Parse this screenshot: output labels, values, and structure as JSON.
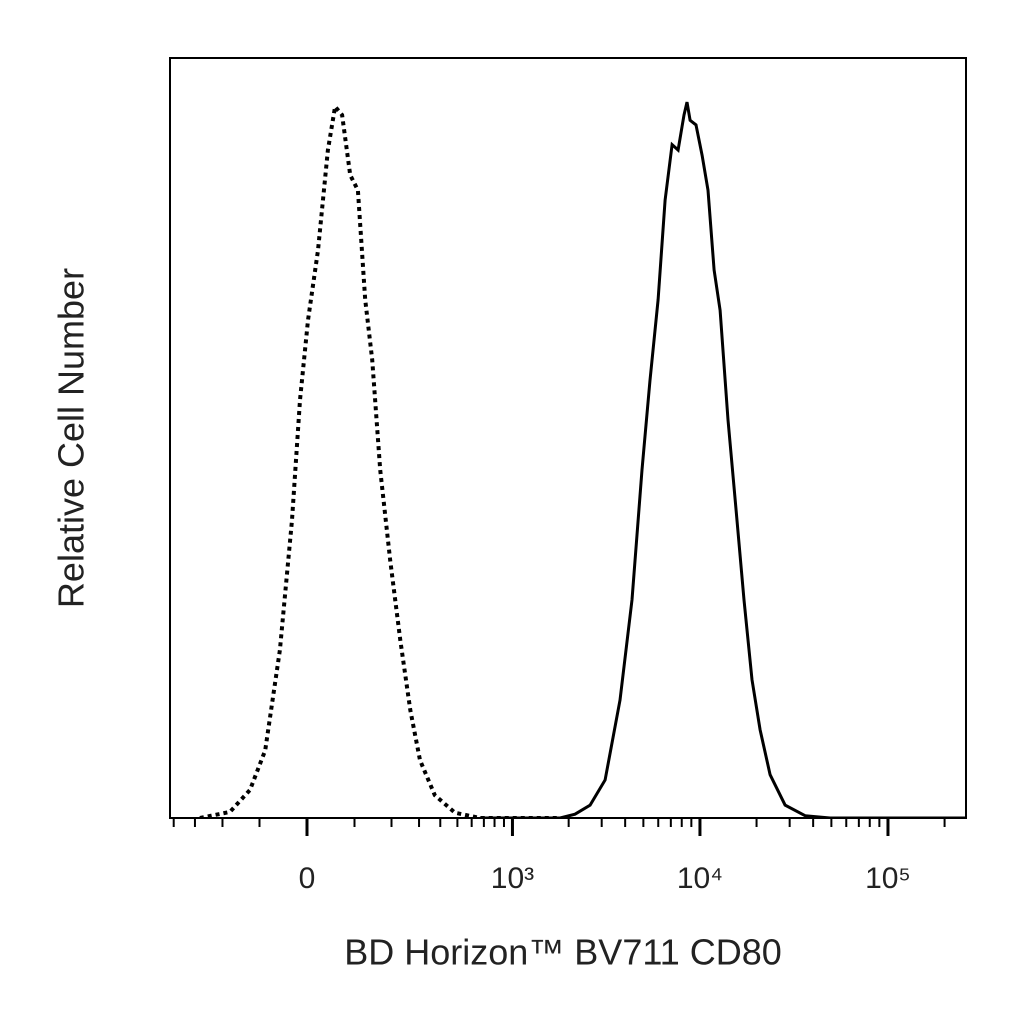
{
  "chart_data": {
    "type": "histogram-overlay",
    "xlabel": "BD Horizon™ BV711 CD80",
    "ylabel": "Relative Cell Number",
    "xscale": "biexponential",
    "xlim": [
      -420,
      260000
    ],
    "ylim": [
      0,
      100
    ],
    "xticks": [
      0,
      {
        "value": 1000,
        "label": "10³"
      },
      {
        "value": 10000,
        "label": "10⁴"
      },
      {
        "value": 100000,
        "label": "10⁵"
      }
    ],
    "xminorticks": [
      -400,
      -300,
      -200,
      -100,
      100,
      200,
      300,
      400,
      500,
      600,
      700,
      800,
      900,
      2000,
      3000,
      4000,
      5000,
      6000,
      7000,
      8000,
      9000,
      20000,
      30000,
      40000,
      50000,
      60000,
      70000,
      80000,
      90000,
      200000
    ],
    "series": [
      {
        "color": "#000000",
        "dash": "dotted",
        "x": [
          -280,
          -177,
          -123,
          -87,
          -55,
          -30,
          -14,
          2,
          22,
          42,
          57,
          72,
          90,
          108,
          126,
          144,
          166,
          196,
          229,
          265,
          304,
          372,
          484,
          666,
          1800
        ],
        "values": [
          0,
          0.8,
          3.7,
          8.9,
          22.1,
          39.2,
          55,
          65.5,
          74.7,
          87.9,
          93.6,
          92.5,
          84.6,
          82.6,
          68.2,
          60.3,
          45.8,
          33.9,
          23.4,
          14.2,
          7.6,
          3.0,
          0.7,
          0,
          0
        ]
      },
      {
        "color": "#000000",
        "dash": "solid",
        "x": [
          666,
          1800,
          2163,
          2601,
          3127,
          3755,
          4351,
          4919,
          5426,
          5987,
          6523,
          7106,
          7650,
          8228,
          8537,
          8862,
          9528,
          10260,
          11040,
          11886,
          12797,
          14097,
          15561,
          17154,
          18927,
          20878,
          23610,
          28357,
          36244,
          49219,
          260000
        ],
        "values": [
          0,
          0,
          0.5,
          1.7,
          5.0,
          15.5,
          28.7,
          45.8,
          57.6,
          68.2,
          81.3,
          88.6,
          87.9,
          92.5,
          94.2,
          91.8,
          91.2,
          87.2,
          82.6,
          72.1,
          66.8,
          52.4,
          40.5,
          28.7,
          18.2,
          11.6,
          5.7,
          1.7,
          0.3,
          0,
          0
        ]
      }
    ]
  }
}
